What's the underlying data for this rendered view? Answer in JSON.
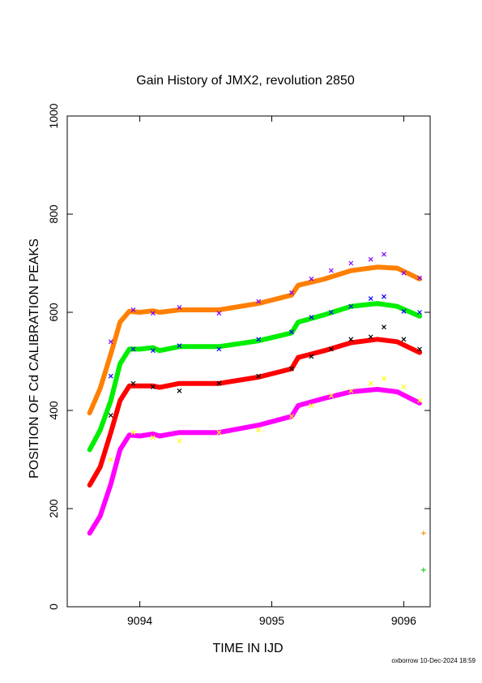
{
  "chart_data": {
    "type": "scatter",
    "title": "Gain History of JMX2, revolution 2850",
    "xlabel": "TIME IN IJD",
    "ylabel": "POSITION OF Cd CALIBRATION PEAKS",
    "xlim": [
      9093.45,
      9096.2
    ],
    "ylim": [
      0,
      1000
    ],
    "xticks": [
      9094,
      9095,
      9096
    ],
    "xtick_labels": [
      "9094",
      "9095",
      "9096"
    ],
    "yticks": [
      0,
      200,
      400,
      600,
      800,
      1000
    ],
    "ytick_labels": [
      "0",
      "200",
      "400",
      "600",
      "800",
      "1000"
    ],
    "grid": false,
    "series": [
      {
        "kind": "fit",
        "color": "#ff8000",
        "x": [
          9093.62,
          9093.7,
          9093.78,
          9093.85,
          9093.92,
          9094.0,
          9094.1,
          9094.15,
          9094.3,
          9094.6,
          9094.9,
          9095.15,
          9095.2,
          9095.4,
          9095.6,
          9095.8,
          9095.95,
          9096.12
        ],
        "y": [
          395,
          445,
          515,
          580,
          602,
          600,
          603,
          600,
          605,
          605,
          618,
          635,
          655,
          668,
          685,
          692,
          690,
          668
        ]
      },
      {
        "kind": "fit",
        "color": "#00ee00",
        "x": [
          9093.62,
          9093.7,
          9093.78,
          9093.85,
          9093.92,
          9094.0,
          9094.1,
          9094.15,
          9094.3,
          9094.6,
          9094.9,
          9095.15,
          9095.2,
          9095.4,
          9095.6,
          9095.8,
          9095.95,
          9096.12
        ],
        "y": [
          320,
          360,
          420,
          495,
          525,
          525,
          528,
          522,
          530,
          530,
          542,
          558,
          580,
          595,
          612,
          618,
          612,
          592
        ]
      },
      {
        "kind": "fit",
        "color": "#ff0000",
        "x": [
          9093.62,
          9093.7,
          9093.78,
          9093.85,
          9093.92,
          9094.0,
          9094.1,
          9094.15,
          9094.3,
          9094.6,
          9094.9,
          9095.15,
          9095.2,
          9095.4,
          9095.6,
          9095.8,
          9095.95,
          9096.12
        ],
        "y": [
          248,
          285,
          355,
          420,
          450,
          450,
          450,
          447,
          455,
          455,
          468,
          485,
          508,
          522,
          538,
          545,
          540,
          518
        ]
      },
      {
        "kind": "fit",
        "color": "#ff00ff",
        "x": [
          9093.62,
          9093.7,
          9093.78,
          9093.85,
          9093.92,
          9094.0,
          9094.1,
          9094.15,
          9094.3,
          9094.6,
          9094.9,
          9095.15,
          9095.2,
          9095.4,
          9095.6,
          9095.8,
          9095.95,
          9096.12
        ],
        "y": [
          150,
          185,
          250,
          320,
          350,
          348,
          352,
          348,
          355,
          355,
          370,
          388,
          410,
          425,
          438,
          443,
          438,
          415
        ]
      },
      {
        "kind": "points",
        "color": "#8000ff",
        "x": [
          9093.78,
          9093.95,
          9094.1,
          9094.3,
          9094.6,
          9094.9,
          9095.15,
          9095.3,
          9095.45,
          9095.6,
          9095.75,
          9095.85,
          9096.0,
          9096.12
        ],
        "y": [
          540,
          605,
          598,
          610,
          598,
          622,
          640,
          668,
          685,
          700,
          708,
          718,
          680,
          670
        ]
      },
      {
        "kind": "points",
        "color": "#0000ff",
        "x": [
          9093.78,
          9093.95,
          9094.1,
          9094.3,
          9094.6,
          9094.9,
          9095.15,
          9095.3,
          9095.45,
          9095.6,
          9095.75,
          9095.85,
          9096.0,
          9096.12
        ],
        "y": [
          470,
          525,
          522,
          532,
          525,
          545,
          560,
          590,
          600,
          612,
          628,
          632,
          602,
          600
        ]
      },
      {
        "kind": "points",
        "color": "#000000",
        "x": [
          9093.78,
          9093.95,
          9094.1,
          9094.3,
          9094.6,
          9094.9,
          9095.15,
          9095.3,
          9095.45,
          9095.6,
          9095.75,
          9095.85,
          9096.0,
          9096.12
        ],
        "y": [
          390,
          455,
          448,
          440,
          455,
          470,
          485,
          510,
          525,
          545,
          550,
          570,
          545,
          525
        ]
      },
      {
        "kind": "points",
        "color": "#ffff00",
        "x": [
          9093.78,
          9093.95,
          9094.1,
          9094.3,
          9094.6,
          9094.9,
          9095.15,
          9095.3,
          9095.45,
          9095.6,
          9095.75,
          9095.85,
          9096.0,
          9096.12
        ],
        "y": [
          300,
          355,
          345,
          338,
          355,
          360,
          388,
          410,
          430,
          440,
          455,
          465,
          448,
          420
        ]
      },
      {
        "kind": "plus",
        "color": "#ff8000",
        "x": [
          9096.15
        ],
        "y": [
          150
        ]
      },
      {
        "kind": "plus",
        "color": "#00cc00",
        "x": [
          9096.15
        ],
        "y": [
          75
        ]
      }
    ]
  },
  "footer": "oxborrow 10-Dec-2024 18:59"
}
